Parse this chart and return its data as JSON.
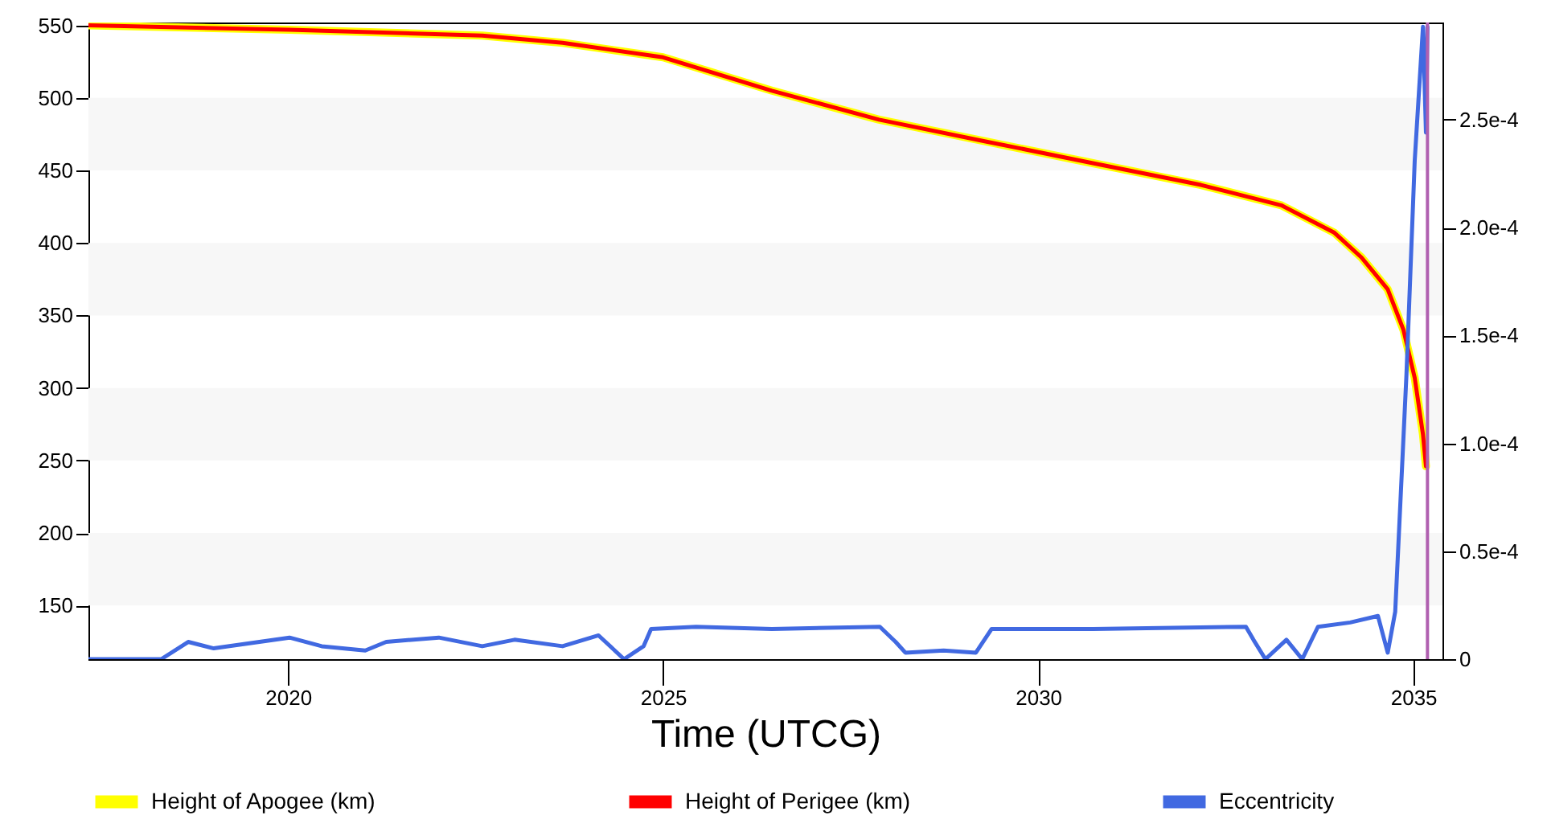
{
  "chart_data": {
    "type": "line",
    "xlabel": "Time (UTCG)",
    "xlim": [
      2017.34,
      2035.39
    ],
    "xticks": [
      2020,
      2025,
      2030,
      2035
    ],
    "ylim": [
      113,
      552
    ],
    "yticks": [
      150,
      200,
      250,
      300,
      350,
      400,
      450,
      500,
      550
    ],
    "y2lim": [
      0,
      0.000295
    ],
    "y2ticks": [
      0,
      {
        "value": 5e-05,
        "label": "0.5e-4"
      },
      {
        "value": 0.0001,
        "label": "1.0e-4"
      },
      {
        "value": 0.00015,
        "label": "1.5e-4"
      },
      {
        "value": 0.0002,
        "label": "2.0e-4"
      },
      {
        "value": 0.00025,
        "label": "2.5e-4"
      }
    ],
    "legend": "bottom",
    "bands": [
      {
        "axis": "y",
        "from": 150,
        "to": 200,
        "color": "#f7f7f7"
      },
      {
        "axis": "y",
        "from": 250,
        "to": 300,
        "color": "#f7f7f7"
      },
      {
        "axis": "y",
        "from": 350,
        "to": 400,
        "color": "#f7f7f7"
      },
      {
        "axis": "y",
        "from": 450,
        "to": 500,
        "color": "#f7f7f7"
      }
    ],
    "ref_lines": [
      {
        "axis": "x",
        "value": 2035.19,
        "color": "#b060b0"
      }
    ],
    "series": [
      {
        "name": "Height of Apogee (km)",
        "color": "#ffff00",
        "x": [
          2017.34,
          2020.02,
          2022.59,
          2023.66,
          2025.0,
          2026.45,
          2027.88,
          2029.3,
          2030.73,
          2032.17,
          2033.24,
          2033.95,
          2034.31,
          2034.66,
          2034.87,
          2035.02,
          2035.13,
          2035.17
        ],
        "values": [
          550,
          547,
          543,
          538,
          528,
          505,
          485,
          470,
          455,
          440,
          426,
          407,
          390,
          368,
          340,
          307,
          268,
          246
        ]
      },
      {
        "name": "Height of Perigee (km)",
        "color": "#ff0000",
        "x": [
          2017.34,
          2020.02,
          2022.59,
          2023.66,
          2025.0,
          2026.45,
          2027.88,
          2029.3,
          2030.73,
          2032.17,
          2033.24,
          2033.95,
          2034.31,
          2034.66,
          2034.87,
          2035.02,
          2035.13,
          2035.17
        ],
        "values": [
          550,
          547,
          543,
          538,
          528,
          505,
          485,
          470,
          455,
          440,
          426,
          407,
          390,
          368,
          340,
          307,
          268,
          246
        ]
      },
      {
        "name": "Eccentricity",
        "color": "#4169e1",
        "axis": "y2",
        "x": [
          2017.34,
          2018.31,
          2018.67,
          2019.01,
          2020.02,
          2020.45,
          2021.03,
          2021.31,
          2022.01,
          2022.59,
          2023.02,
          2023.66,
          2024.14,
          2024.48,
          2024.74,
          2024.84,
          2025.44,
          2026.45,
          2027.89,
          2028.1,
          2028.23,
          2028.74,
          2029.17,
          2029.38,
          2030.73,
          2032.77,
          2032.87,
          2033.03,
          2033.31,
          2033.52,
          2033.73,
          2034.16,
          2034.53,
          2034.66,
          2034.76,
          2034.91,
          2035.02,
          2035.13,
          2035.17,
          2035.19
        ],
        "values": [
          0,
          0,
          8e-06,
          5e-06,
          1e-05,
          6e-06,
          4e-06,
          8e-06,
          1e-05,
          6e-06,
          9e-06,
          6e-06,
          1.1e-05,
          0,
          6e-06,
          1.4e-05,
          1.5e-05,
          1.4e-05,
          1.5e-05,
          8e-06,
          3e-06,
          4e-06,
          3e-06,
          1.4e-05,
          1.4e-05,
          1.5e-05,
          9e-06,
          0,
          9e-06,
          0,
          1.5e-05,
          1.7e-05,
          2e-05,
          3e-06,
          2.2e-05,
          0.000132,
          0.000231,
          0.000293,
          0.000244,
          0.000293
        ]
      }
    ]
  }
}
